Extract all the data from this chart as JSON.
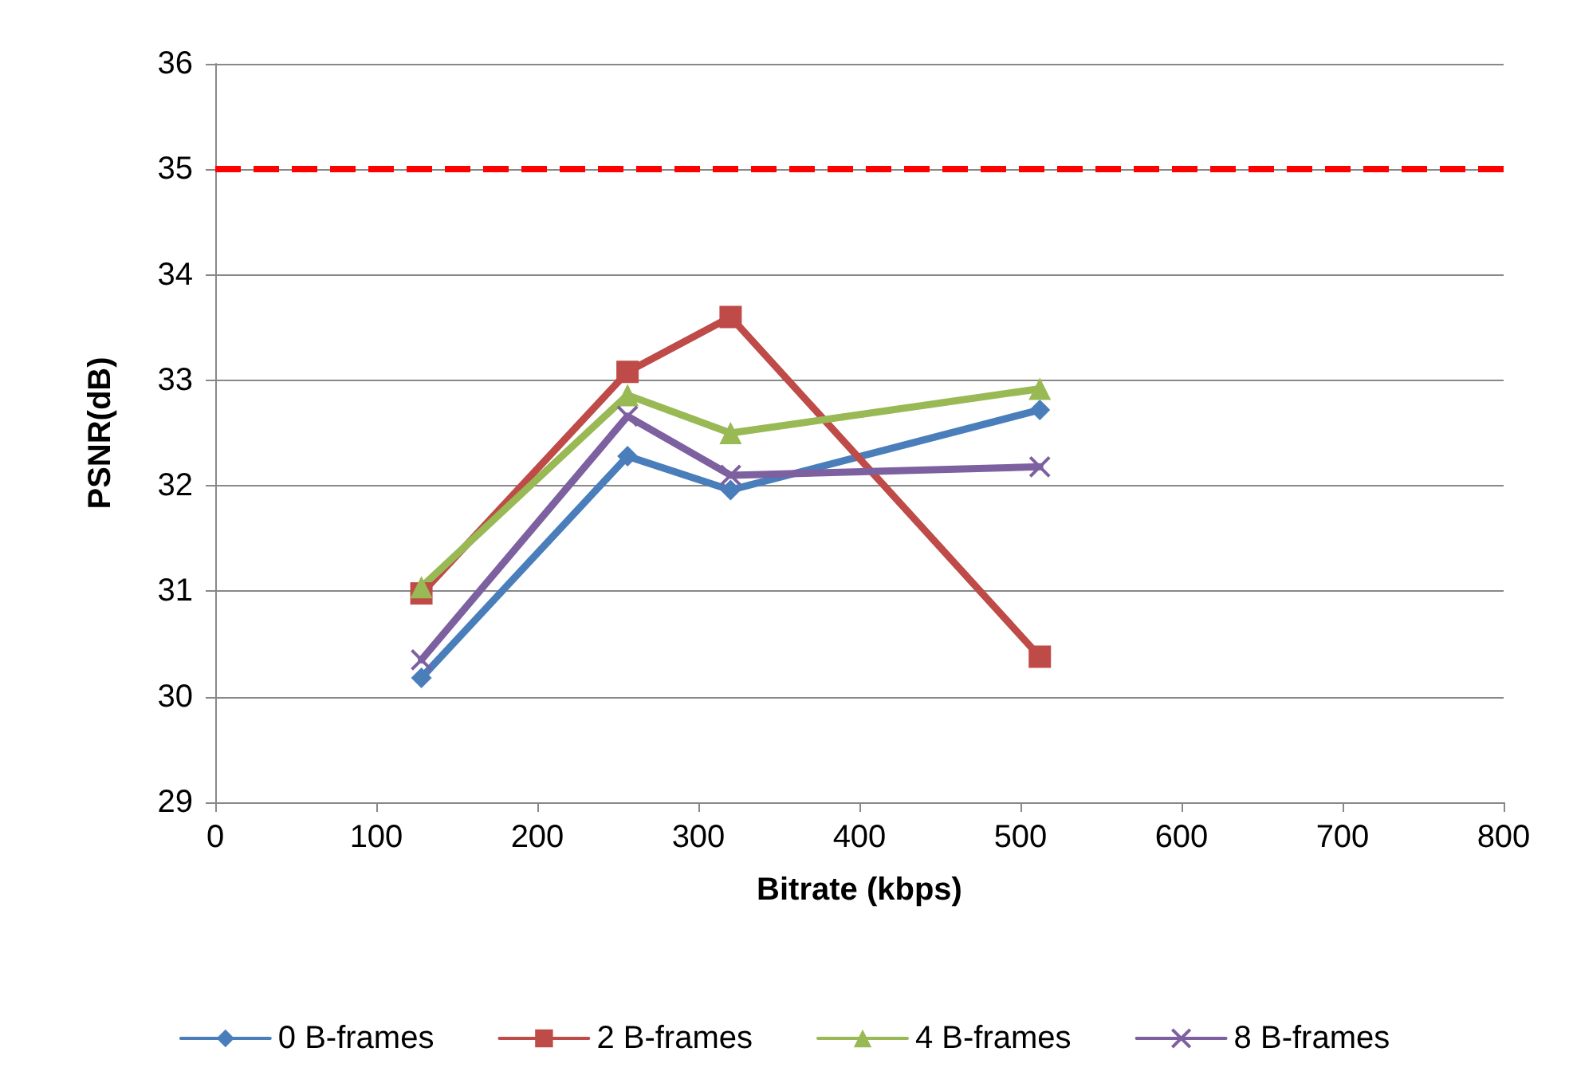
{
  "chart_data": {
    "type": "line",
    "xlabel": "Bitrate (kbps)",
    "ylabel": "PSNR(dB)",
    "xlim": [
      0,
      800
    ],
    "xticks": [
      0,
      100,
      200,
      300,
      400,
      500,
      600,
      700,
      800
    ],
    "ylim": [
      29,
      36
    ],
    "yticks": [
      29,
      30,
      31,
      32,
      33,
      34,
      35,
      36
    ],
    "grid": "y",
    "legend": "bottom",
    "line_style": "solid",
    "series": [
      {
        "name": "0 B-frames",
        "color": "#4a7ebb",
        "marker": "diamond",
        "x": [
          128,
          256,
          320,
          512
        ],
        "values": [
          30.18,
          32.28,
          31.96,
          32.72
        ]
      },
      {
        "name": "2 B-frames",
        "color": "#be4b48",
        "marker": "square",
        "x": [
          128,
          256,
          320,
          512
        ],
        "values": [
          30.98,
          33.08,
          33.6,
          30.38
        ]
      },
      {
        "name": "4 B-frames",
        "color": "#98b954",
        "marker": "triangle",
        "x": [
          128,
          256,
          320,
          512
        ],
        "values": [
          31.04,
          32.86,
          32.5,
          32.92
        ]
      },
      {
        "name": "8 B-frames",
        "color": "#7d60a0",
        "marker": "cross",
        "x": [
          128,
          256,
          320,
          512
        ],
        "values": [
          30.35,
          32.66,
          32.1,
          32.18
        ]
      }
    ],
    "ref_lines": [
      {
        "axis": "y",
        "value": 35,
        "color": "#ff0000",
        "line_style": "dashed"
      }
    ]
  }
}
